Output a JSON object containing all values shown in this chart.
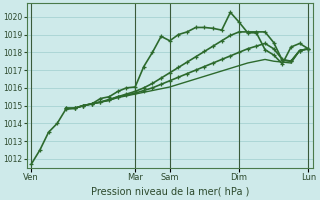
{
  "title": "Pression niveau de la mer( hPa )",
  "ylim": [
    1011.5,
    1020.75
  ],
  "yticks": [
    1012,
    1013,
    1014,
    1015,
    1016,
    1017,
    1018,
    1019,
    1020
  ],
  "bg_color": "#ceeaea",
  "grid_color": "#9fcece",
  "line_color": "#2d6a2d",
  "day_labels": [
    "Ven",
    "Mar",
    "Sam",
    "Dim",
    "Lun"
  ],
  "day_x": [
    0,
    12,
    16,
    24,
    32
  ],
  "total_points": 35,
  "series": [
    {
      "x": [
        0,
        1,
        2,
        3,
        4,
        5,
        6,
        7,
        8,
        9,
        10,
        11,
        12,
        13,
        14,
        15,
        16,
        17,
        18,
        19,
        20,
        21,
        22,
        23,
        24,
        25,
        26,
        27,
        28,
        29,
        30,
        31,
        32
      ],
      "y": [
        1011.7,
        1012.5,
        1013.5,
        1014.0,
        1014.8,
        1014.85,
        1015.0,
        1015.1,
        1015.4,
        1015.5,
        1015.8,
        1016.0,
        1016.05,
        1017.2,
        1018.0,
        1018.9,
        1018.65,
        1019.0,
        1019.15,
        1019.4,
        1019.4,
        1019.35,
        1019.25,
        1020.25,
        1019.7,
        1019.1,
        1019.1,
        1018.15,
        1017.85,
        1017.35,
        1018.3,
        1018.5,
        1018.2
      ],
      "marker": true,
      "linewidth": 1.2
    },
    {
      "x": [
        4,
        5,
        6,
        7,
        8,
        9,
        10,
        11,
        12,
        13,
        14,
        15,
        16,
        17,
        18,
        19,
        20,
        21,
        22,
        23,
        24,
        25,
        26,
        27,
        28,
        29,
        30,
        31,
        32
      ],
      "y": [
        1014.85,
        1014.85,
        1015.0,
        1015.1,
        1015.2,
        1015.3,
        1015.5,
        1015.6,
        1015.7,
        1015.85,
        1016.0,
        1016.2,
        1016.4,
        1016.6,
        1016.8,
        1017.0,
        1017.2,
        1017.4,
        1017.6,
        1017.8,
        1018.0,
        1018.2,
        1018.35,
        1018.5,
        1018.2,
        1017.6,
        1017.5,
        1018.1,
        1018.2
      ],
      "marker": true,
      "linewidth": 1.2
    },
    {
      "x": [
        4,
        5,
        6,
        7,
        8,
        9,
        10,
        11,
        12,
        13,
        14,
        15,
        16,
        17,
        18,
        19,
        20,
        21,
        22,
        23,
        24,
        25,
        26,
        27,
        28,
        29,
        30,
        31,
        32
      ],
      "y": [
        1014.85,
        1014.85,
        1015.0,
        1015.1,
        1015.2,
        1015.3,
        1015.45,
        1015.55,
        1015.65,
        1015.75,
        1015.85,
        1015.95,
        1016.05,
        1016.2,
        1016.35,
        1016.5,
        1016.65,
        1016.8,
        1016.95,
        1017.1,
        1017.25,
        1017.4,
        1017.5,
        1017.6,
        1017.5,
        1017.45,
        1017.4,
        1018.1,
        1018.2
      ],
      "marker": false,
      "linewidth": 1.0
    },
    {
      "x": [
        4,
        5,
        6,
        7,
        8,
        9,
        10,
        11,
        12,
        13,
        14,
        15,
        16,
        17,
        18,
        19,
        20,
        21,
        22,
        23,
        24,
        25,
        26,
        27,
        28,
        29,
        30,
        31,
        32
      ],
      "y": [
        1014.85,
        1014.85,
        1015.0,
        1015.1,
        1015.2,
        1015.35,
        1015.5,
        1015.65,
        1015.8,
        1016.0,
        1016.25,
        1016.55,
        1016.85,
        1017.15,
        1017.45,
        1017.75,
        1018.05,
        1018.35,
        1018.65,
        1018.95,
        1019.15,
        1019.15,
        1019.15,
        1019.15,
        1018.55,
        1017.55,
        1017.5,
        1018.1,
        1018.2
      ],
      "marker": true,
      "linewidth": 1.2
    }
  ]
}
